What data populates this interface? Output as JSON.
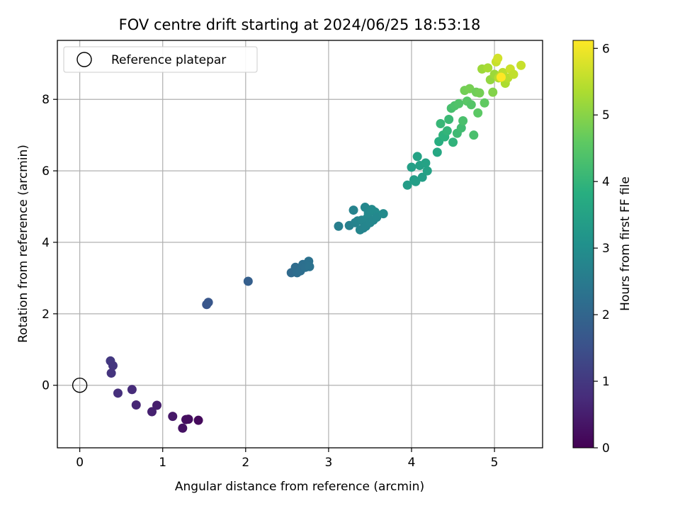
{
  "chart_data": {
    "type": "scatter",
    "title": "FOV centre drift starting at 2024/06/25 18:53:18",
    "xlabel": "Angular distance from reference (arcmin)",
    "ylabel": "Rotation from reference (arcmin)",
    "xlim": [
      -0.27,
      5.58
    ],
    "ylim": [
      -1.75,
      9.65
    ],
    "xticks": [
      0,
      1,
      2,
      3,
      4,
      5
    ],
    "yticks": [
      0,
      2,
      4,
      6,
      8
    ],
    "grid": true,
    "legend": {
      "placement": "top-left",
      "entries": [
        "Reference platepar"
      ]
    },
    "reference_point": {
      "x": 0,
      "y": 0,
      "label": "Reference platepar"
    },
    "colorbar": {
      "label": "Hours from first FF file",
      "colormap": "viridis",
      "range": [
        0,
        6.12
      ],
      "ticks": [
        0,
        1,
        2,
        3,
        4,
        5,
        6
      ]
    },
    "series": [
      {
        "x": [
          0.37,
          0.4,
          0.38,
          0.46,
          0.63,
          0.68,
          0.87,
          0.93,
          1.12,
          1.24,
          1.28,
          1.31,
          1.43,
          1.53,
          1.55,
          2.03,
          2.55,
          2.6,
          2.62,
          2.66,
          2.69,
          2.72,
          2.76,
          2.77,
          3.12,
          3.25,
          3.3,
          3.32,
          3.35,
          3.38,
          3.4,
          3.42,
          3.44,
          3.45,
          3.47,
          3.48,
          3.5,
          3.52,
          3.54,
          3.56,
          3.58,
          3.66,
          3.95,
          4.0,
          4.03,
          4.05,
          4.07,
          4.1,
          4.13,
          4.17,
          4.19,
          4.31,
          4.33,
          4.35,
          4.38,
          4.4,
          4.43,
          4.45,
          4.48,
          4.5,
          4.52,
          4.55,
          4.57,
          4.6,
          4.62,
          4.64,
          4.67,
          4.7,
          4.72,
          4.75,
          4.78,
          4.8,
          4.82,
          4.85,
          4.88,
          4.92,
          4.95,
          4.98,
          5.0,
          5.02,
          5.04,
          5.05,
          5.07,
          5.1,
          5.13,
          5.16,
          5.19,
          5.23,
          5.32
        ],
        "y": [
          0.68,
          0.55,
          0.34,
          -0.22,
          -0.12,
          -0.55,
          -0.74,
          -0.56,
          -0.87,
          -1.2,
          -0.96,
          -0.95,
          -0.98,
          2.26,
          2.32,
          2.91,
          3.15,
          3.3,
          3.15,
          3.2,
          3.38,
          3.3,
          3.47,
          3.32,
          4.45,
          4.47,
          4.9,
          4.55,
          4.6,
          4.35,
          4.62,
          4.4,
          4.98,
          4.45,
          4.7,
          4.82,
          4.55,
          4.92,
          4.62,
          4.85,
          4.7,
          4.8,
          5.6,
          6.1,
          5.75,
          5.7,
          6.4,
          6.15,
          5.82,
          6.22,
          6.0,
          6.52,
          6.82,
          7.32,
          7.0,
          6.95,
          7.12,
          7.44,
          7.75,
          6.8,
          7.82,
          7.05,
          7.88,
          7.2,
          7.4,
          8.25,
          7.95,
          8.3,
          7.85,
          7.0,
          8.2,
          7.62,
          8.18,
          8.85,
          7.9,
          8.88,
          8.55,
          8.2,
          8.7,
          9.05,
          9.15,
          8.6,
          8.65,
          8.75,
          8.45,
          8.6,
          8.85,
          8.7,
          8.95
        ],
        "hours": [
          1.0,
          0.95,
          0.9,
          0.82,
          0.75,
          0.65,
          0.55,
          0.5,
          0.4,
          0.3,
          0.25,
          0.22,
          0.15,
          1.62,
          1.65,
          1.85,
          2.1,
          2.15,
          2.18,
          2.2,
          2.22,
          2.25,
          2.28,
          2.3,
          2.6,
          2.65,
          2.72,
          2.68,
          2.75,
          2.78,
          2.8,
          2.74,
          2.82,
          2.76,
          2.84,
          2.86,
          2.79,
          2.88,
          2.81,
          2.9,
          2.83,
          2.92,
          3.35,
          3.42,
          3.38,
          3.4,
          3.5,
          3.45,
          3.4,
          3.52,
          3.48,
          3.65,
          3.8,
          4.05,
          3.95,
          3.9,
          4.0,
          4.1,
          4.28,
          3.95,
          4.35,
          4.15,
          4.4,
          4.2,
          4.3,
          4.78,
          4.5,
          4.82,
          4.45,
          4.3,
          4.75,
          4.55,
          4.8,
          5.2,
          4.6,
          5.3,
          5.1,
          4.95,
          5.2,
          5.6,
          5.7,
          5.4,
          5.42,
          5.5,
          5.35,
          5.45,
          5.65,
          5.55,
          5.6
        ]
      }
    ],
    "highlight_point": {
      "x": 5.08,
      "y": 8.62,
      "hours": 6.12
    }
  }
}
